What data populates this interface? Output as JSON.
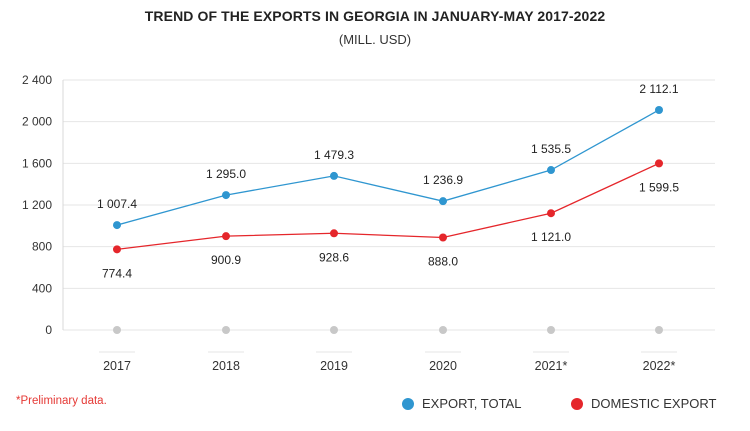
{
  "title": "TREND OF THE EXPORTS IN GEORGIA IN JANUARY-MAY 2017-2022",
  "subtitle": "(MILL. USD)",
  "note": "*Preliminary data.",
  "colors": {
    "total": "#2f96d0",
    "domestic": "#e5262b",
    "baseline_dot": "#c8c8c8",
    "grid": "#e6e6e6"
  },
  "chart_data": {
    "type": "line",
    "title": "TREND OF THE EXPORTS IN GEORGIA IN JANUARY-MAY 2017-2022",
    "subtitle": "(MILL. USD)",
    "categories": [
      "2017",
      "2018",
      "2019",
      "2020",
      "2021*",
      "2022*"
    ],
    "ylim": [
      0,
      2400
    ],
    "yticks": [
      0,
      400,
      800,
      1200,
      1600,
      2000,
      2400
    ],
    "ytick_labels": [
      "0",
      "400",
      "800",
      "1 200",
      "1 600",
      "2 000",
      "2 400"
    ],
    "grid": true,
    "legend_position": "bottom-right",
    "series": [
      {
        "name": "EXPORT, TOTAL",
        "color": "#2f96d0",
        "values": [
          1007.4,
          1295.0,
          1479.3,
          1236.9,
          1535.5,
          2112.1
        ],
        "labels": [
          "1 007.4",
          "1 295.0",
          "1 479.3",
          "1 236.9",
          "1 535.5",
          "2 112.1"
        ]
      },
      {
        "name": "DOMESTIC EXPORT",
        "color": "#e5262b",
        "values": [
          774.4,
          900.9,
          928.6,
          888.0,
          1121.0,
          1599.5
        ],
        "labels": [
          "774.4",
          "900.9",
          "928.6",
          "888.0",
          "1 121.0",
          "1 599.5"
        ]
      }
    ]
  }
}
